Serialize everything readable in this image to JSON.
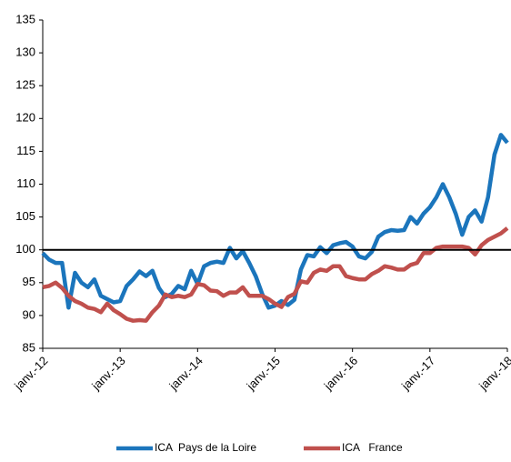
{
  "chart_data": {
    "type": "line",
    "categories": [
      "janv.-12",
      null,
      null,
      null,
      null,
      null,
      null,
      null,
      null,
      null,
      null,
      null,
      "janv.-13",
      null,
      null,
      null,
      null,
      null,
      null,
      null,
      null,
      null,
      null,
      null,
      "janv.-14",
      null,
      null,
      null,
      null,
      null,
      null,
      null,
      null,
      null,
      null,
      null,
      "janv.-15",
      null,
      null,
      null,
      null,
      null,
      null,
      null,
      null,
      null,
      null,
      null,
      "janv.-16",
      null,
      null,
      null,
      null,
      null,
      null,
      null,
      null,
      null,
      null,
      null,
      "janv.-17",
      null,
      null,
      null,
      null,
      null,
      null,
      null,
      null,
      null,
      null,
      null,
      "janv.-18"
    ],
    "series": [
      {
        "name": "ICA  Pays de la Loire",
        "color": "#1b75bc",
        "values": [
          99.5,
          98.5,
          98,
          98,
          91.2,
          96.5,
          95,
          94.3,
          95.5,
          93,
          92.5,
          92,
          92.2,
          94.5,
          95.5,
          96.7,
          96,
          96.8,
          94.2,
          92.8,
          93.3,
          94.5,
          94,
          96.8,
          94.8,
          97.5,
          98,
          98.2,
          98,
          100.3,
          98.7,
          99.8,
          98,
          96,
          93.3,
          91.2,
          91.5,
          92.2,
          91.6,
          92.4,
          97,
          99.2,
          99,
          100.4,
          99.5,
          100.7,
          101,
          101.2,
          100.5,
          99,
          98.7,
          99.7,
          102,
          102.7,
          103,
          102.9,
          103,
          105,
          104,
          105.5,
          106.5,
          108,
          110,
          108,
          105.5,
          102.3,
          105,
          106,
          104.3,
          108,
          114.5,
          117.5,
          116.3
        ]
      },
      {
        "name": "ICA   France",
        "color": "#c0504d",
        "values": [
          94.3,
          94.5,
          95,
          94.2,
          93,
          92.2,
          91.8,
          91.2,
          91,
          90.5,
          91.8,
          90.8,
          90.2,
          89.5,
          89.2,
          89.3,
          89.2,
          90.5,
          91.5,
          93.2,
          92.8,
          93,
          92.8,
          93.2,
          94.8,
          94.6,
          93.8,
          93.7,
          93,
          93.5,
          93.5,
          94.3,
          93,
          93,
          93,
          92.5,
          91.8,
          91.3,
          92.8,
          93.3,
          95.2,
          95,
          96.5,
          97,
          96.8,
          97.5,
          97.5,
          96,
          95.7,
          95.5,
          95.5,
          96.3,
          96.8,
          97.5,
          97.3,
          97,
          97,
          97.7,
          98,
          99.5,
          99.5,
          100.3,
          100.5,
          100.5,
          100.5,
          100.5,
          100.3,
          99.3,
          100.7,
          101.5,
          102,
          102.5,
          103.3
        ]
      }
    ],
    "reference_line": 100,
    "ylim": [
      85,
      135
    ],
    "yticks": [
      85,
      90,
      95,
      100,
      105,
      110,
      115,
      120,
      125,
      130,
      135
    ],
    "grid": false,
    "legend": "bottom"
  }
}
